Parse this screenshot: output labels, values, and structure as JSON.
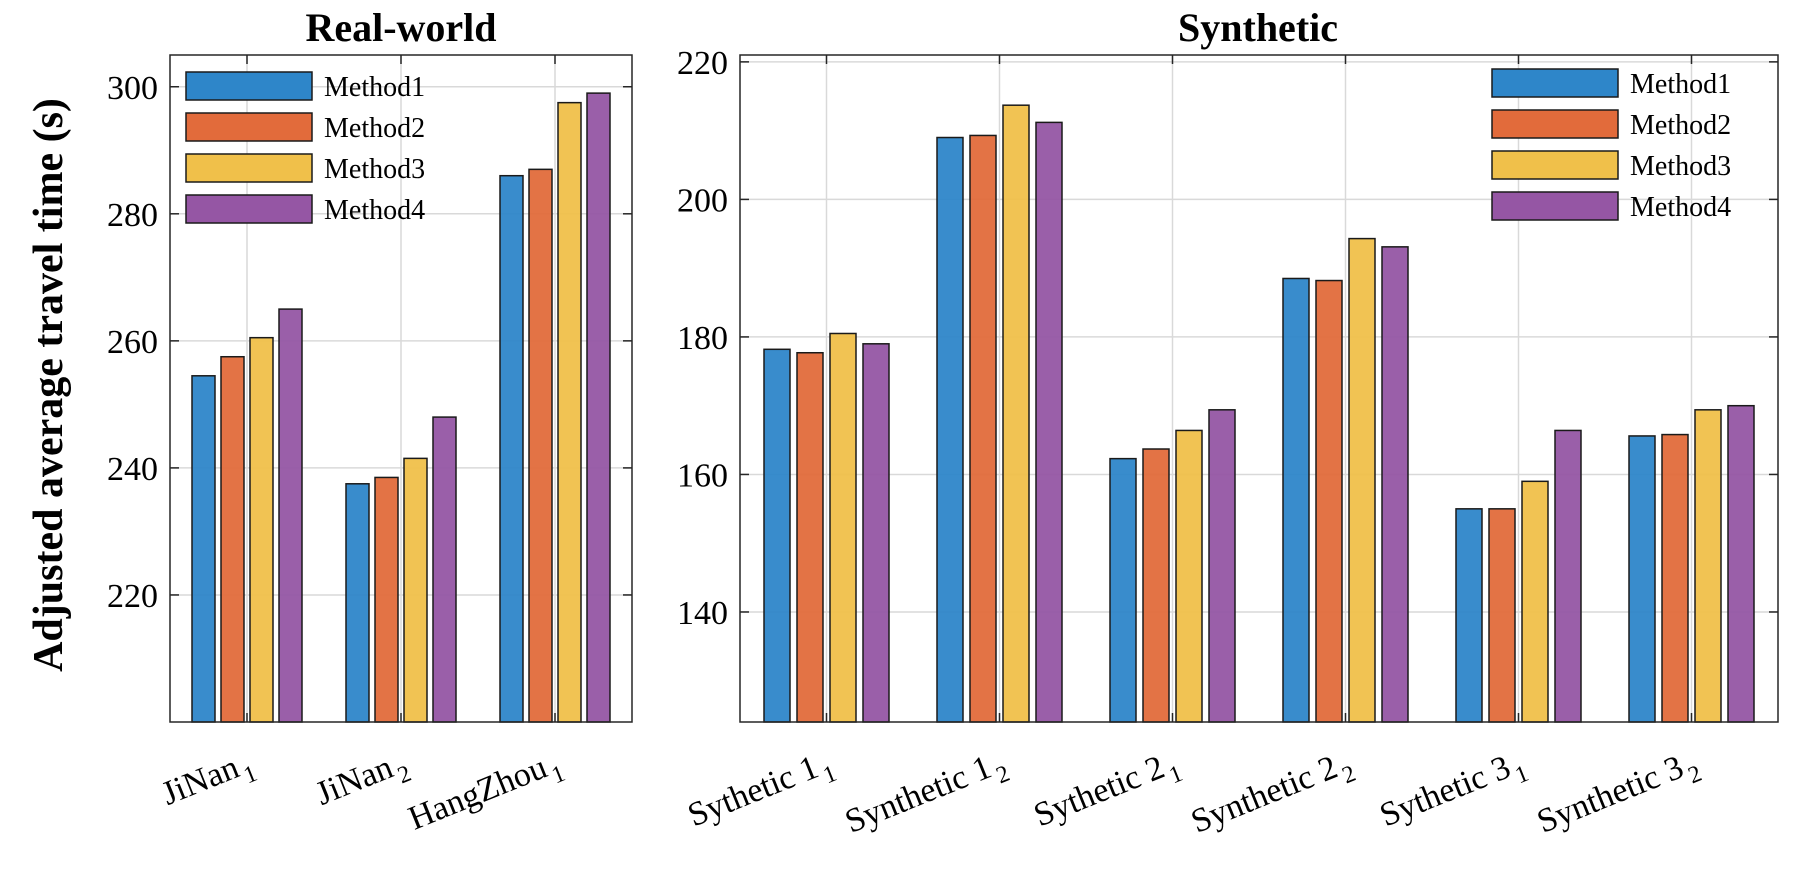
{
  "ylabel": "Adjusted average travel time (s)",
  "chart_data": [
    {
      "type": "bar",
      "title": "Real-world",
      "ylabel": "Adjusted average travel time (s)",
      "ylim": [
        200,
        305
      ],
      "yticks": [
        220,
        240,
        260,
        280,
        300
      ],
      "grid": true,
      "legend_position": "top-left",
      "categories": [
        {
          "main": "JiNan",
          "sub": "1"
        },
        {
          "main": "JiNan",
          "sub": "2"
        },
        {
          "main": "HangZhou",
          "sub": "1"
        }
      ],
      "series": [
        {
          "name": "Method1",
          "color": "#2E86C9",
          "values": [
            254.5,
            237.5,
            286.0
          ]
        },
        {
          "name": "Method2",
          "color": "#E26B3B",
          "values": [
            257.5,
            238.5,
            287.0
          ]
        },
        {
          "name": "Method3",
          "color": "#F0C04A",
          "values": [
            260.5,
            241.5,
            297.5
          ]
        },
        {
          "name": "Method4",
          "color": "#9556A4",
          "values": [
            265.0,
            248.0,
            299.0
          ]
        }
      ]
    },
    {
      "type": "bar",
      "title": "Synthetic",
      "ylim": [
        124,
        221
      ],
      "yticks": [
        140,
        160,
        180,
        200,
        220
      ],
      "grid": true,
      "legend_position": "top-right",
      "categories": [
        {
          "main": "Sythetic 1",
          "sub": "1"
        },
        {
          "main": "Synthetic 1",
          "sub": "2"
        },
        {
          "main": "Sythetic 2",
          "sub": "1"
        },
        {
          "main": "Synthetic 2",
          "sub": "2"
        },
        {
          "main": "Sythetic 3",
          "sub": "1"
        },
        {
          "main": "Synthetic 3",
          "sub": "2"
        }
      ],
      "series": [
        {
          "name": "Method1",
          "color": "#2E86C9",
          "values": [
            178.2,
            209.0,
            162.3,
            188.5,
            155.0,
            165.6
          ]
        },
        {
          "name": "Method2",
          "color": "#E26B3B",
          "values": [
            177.7,
            209.3,
            163.7,
            188.2,
            155.0,
            165.8
          ]
        },
        {
          "name": "Method3",
          "color": "#F0C04A",
          "values": [
            180.5,
            213.7,
            166.4,
            194.3,
            159.0,
            169.4
          ]
        },
        {
          "name": "Method4",
          "color": "#9556A4",
          "values": [
            179.0,
            211.2,
            169.4,
            193.1,
            166.4,
            170.0
          ]
        }
      ]
    }
  ]
}
